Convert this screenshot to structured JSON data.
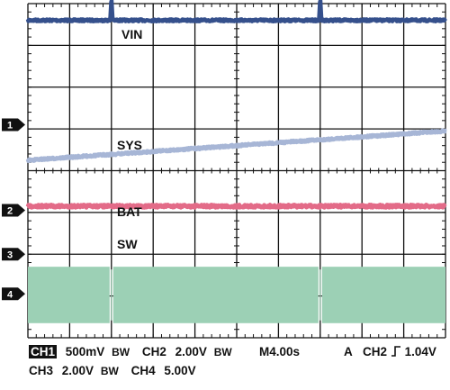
{
  "chart_data": {
    "type": "line",
    "title": "",
    "grid": true,
    "divisions": {
      "x": 10,
      "y": 8
    },
    "series": [
      {
        "name": "VIN",
        "color": "#35508c",
        "level": 7.6,
        "noise": 0.05,
        "glitches": [
          2.0,
          7.0
        ],
        "glitch_height": 0.55
      },
      {
        "name": "SYS",
        "color": "#a7b6d6",
        "level": 4.25,
        "noise": 0.05,
        "slope": 0.07
      },
      {
        "name": "BAT",
        "color": "#e36b88",
        "level": 3.15,
        "noise": 0.07
      },
      {
        "name": "SW",
        "color": "#9cd0b5",
        "low": 0.35,
        "high": 1.7,
        "glitches": [
          2.0,
          7.0
        ]
      }
    ],
    "channel_markers": [
      {
        "number": "1",
        "level": 5.1
      },
      {
        "number": "2",
        "level": 3.05
      },
      {
        "number": "3",
        "level": 2.0
      },
      {
        "number": "4",
        "level": 1.05
      }
    ]
  },
  "readout": {
    "ch1_label": "CH1",
    "ch1_scale": "500mV",
    "bw_b": "B",
    "bw_w": "W",
    "ch2_label": "CH2",
    "ch2_scale": "2.00V",
    "timebase": "M4.00s",
    "trigger_mode": "A",
    "trigger_channel": "CH2",
    "trigger_edge": "┐̲",
    "trigger_level": "1.04V",
    "ch3_label": "CH3",
    "ch3_scale": "2.00V",
    "ch4_label": "CH4",
    "ch4_scale": "5.00V"
  }
}
